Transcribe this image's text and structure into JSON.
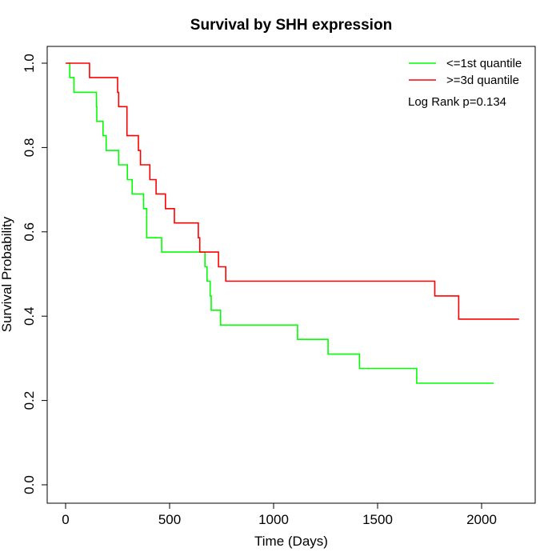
{
  "chart_data": {
    "type": "line",
    "step": true,
    "title": "Survival by SHH expression",
    "xlabel": "Time (Days)",
    "ylabel": "Survival Probability",
    "xlim": [
      0,
      2200
    ],
    "ylim": [
      0,
      1
    ],
    "xticks": [
      "0",
      "500",
      "1000",
      "1500",
      "2000"
    ],
    "xtick_values": [
      0,
      500,
      1000,
      1500,
      2000
    ],
    "yticks": [
      "0.0",
      "0.2",
      "0.4",
      "0.6",
      "0.8",
      "1.0"
    ],
    "ytick_values": [
      0,
      0.2,
      0.4,
      0.6,
      0.8,
      1.0
    ],
    "grid": false,
    "legend_position": "top-right",
    "annotation": "Log Rank p=0.134",
    "series": [
      {
        "name": "<=1st quantile",
        "color": "#00ff00",
        "points": [
          [
            12,
            1.0
          ],
          [
            20,
            0.966
          ],
          [
            40,
            0.931
          ],
          [
            148,
            0.897
          ],
          [
            150,
            0.862
          ],
          [
            180,
            0.828
          ],
          [
            195,
            0.793
          ],
          [
            255,
            0.759
          ],
          [
            297,
            0.724
          ],
          [
            320,
            0.69
          ],
          [
            375,
            0.655
          ],
          [
            390,
            0.586
          ],
          [
            462,
            0.552
          ],
          [
            670,
            0.517
          ],
          [
            680,
            0.483
          ],
          [
            695,
            0.448
          ],
          [
            700,
            0.414
          ],
          [
            745,
            0.379
          ],
          [
            1115,
            0.345
          ],
          [
            1262,
            0.31
          ],
          [
            1413,
            0.276
          ],
          [
            1688,
            0.241
          ],
          [
            2058,
            0.241
          ]
        ]
      },
      {
        "name": ">=3d quantile",
        "color": "#ff0000",
        "points": [
          [
            0,
            1.0
          ],
          [
            115,
            0.966
          ],
          [
            250,
            0.931
          ],
          [
            255,
            0.897
          ],
          [
            295,
            0.828
          ],
          [
            350,
            0.793
          ],
          [
            360,
            0.759
          ],
          [
            405,
            0.724
          ],
          [
            435,
            0.69
          ],
          [
            480,
            0.655
          ],
          [
            523,
            0.621
          ],
          [
            638,
            0.586
          ],
          [
            645,
            0.552
          ],
          [
            735,
            0.517
          ],
          [
            770,
            0.483
          ],
          [
            1775,
            0.448
          ],
          [
            1890,
            0.393
          ],
          [
            2180,
            0.393
          ]
        ]
      }
    ]
  }
}
